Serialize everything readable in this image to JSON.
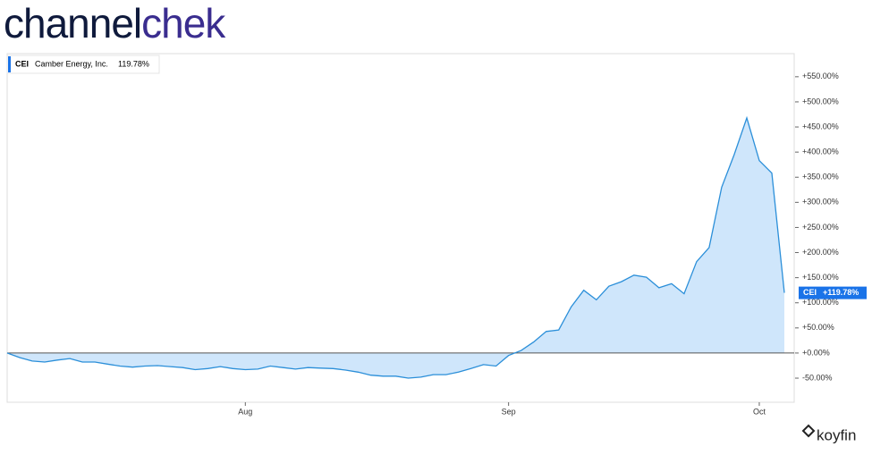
{
  "brand": {
    "part1": "channel",
    "part2": "chek"
  },
  "provider": "koyfin",
  "chart_data": {
    "type": "area",
    "legend": {
      "ticker": "CEI",
      "name": "Camber Energy, Inc.",
      "value_label": "119.78%"
    },
    "last_tag": {
      "ticker": "CEI",
      "value_label": "+119.78%"
    },
    "categories": [
      null,
      null,
      null,
      null,
      null,
      null,
      null,
      null,
      null,
      null,
      null,
      null,
      null,
      null,
      null,
      null,
      null,
      null,
      null,
      "Aug",
      null,
      null,
      null,
      null,
      null,
      null,
      null,
      null,
      null,
      null,
      null,
      null,
      null,
      null,
      null,
      null,
      null,
      null,
      null,
      null,
      "Sep",
      null,
      null,
      null,
      null,
      null,
      null,
      null,
      null,
      null,
      null,
      null,
      null,
      null,
      null,
      null,
      null,
      null,
      null,
      null,
      "Oct",
      null,
      null
    ],
    "series": [
      {
        "name": "CEI",
        "color": "#2b8fd9",
        "fill": "#cfe6fb",
        "values": [
          0,
          -9,
          -16,
          -18,
          -14,
          -11,
          -18,
          -18,
          -22,
          -26,
          -28,
          -26,
          -25,
          -27,
          -29,
          -33,
          -31,
          -27,
          -31,
          -33,
          -32,
          -26,
          -29,
          -32,
          -29,
          -30,
          -31,
          -34,
          -38,
          -44,
          -46,
          -46,
          -50,
          -48,
          -43,
          -43,
          -38,
          -31,
          -23,
          -26,
          -5,
          5,
          22,
          43,
          46,
          92,
          125,
          106,
          133,
          142,
          155,
          151,
          130,
          138,
          118,
          182,
          210,
          330,
          395,
          468,
          383,
          358,
          119.78
        ]
      }
    ],
    "ylim": [
      -98,
      596
    ],
    "yticks": [
      {
        "value": 550,
        "label": "+550.00%"
      },
      {
        "value": 500,
        "label": "+500.00%"
      },
      {
        "value": 450,
        "label": "+450.00%"
      },
      {
        "value": 400,
        "label": "+400.00%"
      },
      {
        "value": 350,
        "label": "+350.00%"
      },
      {
        "value": 300,
        "label": "+300.00%"
      },
      {
        "value": 250,
        "label": "+250.00%"
      },
      {
        "value": 200,
        "label": "+200.00%"
      },
      {
        "value": 150,
        "label": "+150.00%"
      },
      {
        "value": 100,
        "label": "+100.00%"
      },
      {
        "value": 50,
        "label": "+50.00%"
      },
      {
        "value": 0,
        "label": "+0.00%"
      },
      {
        "value": -50,
        "label": "-50.00%"
      }
    ]
  }
}
